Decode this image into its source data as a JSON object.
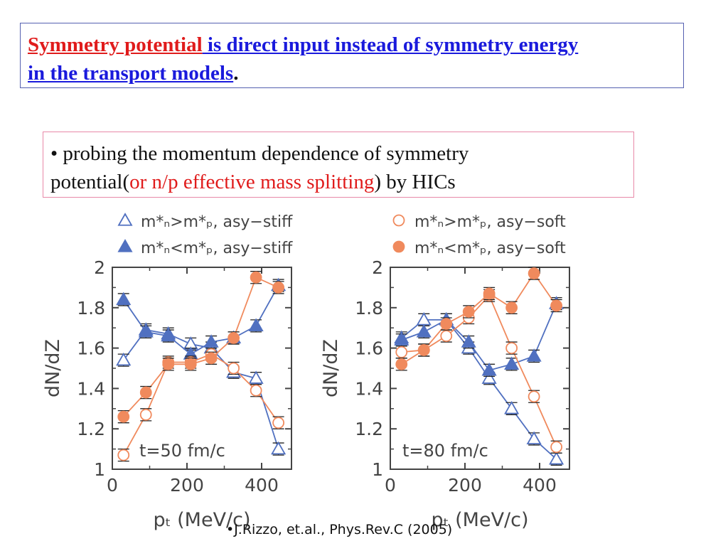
{
  "header": {
    "part1": "Symmetry potential",
    "part2": " is direct input instead of symmetry energy",
    "part3": "in the transport models",
    "part4": "."
  },
  "bullet": {
    "prefix": "•  probing the  momentum dependence of symmetry",
    "line2_a": "potential(",
    "line2_red": "or n/p effective mass splitting",
    "line2_b": ") by HICs"
  },
  "citation": "•J.Rizzo, et.al., Phys.Rev.C (2005)",
  "colors": {
    "blue": "#5070c0",
    "orange": "#f08a5d",
    "axis": "#444444"
  },
  "chart_data": [
    {
      "type": "line",
      "annotation": "t=50 fm/c",
      "xlabel": "pₜ (MeV/c)",
      "ylabel": "dN/dZ",
      "xlim": [
        0,
        480
      ],
      "ylim": [
        1,
        2
      ],
      "xticks": [
        "0",
        "200",
        "400"
      ],
      "yticks": [
        "1",
        "1.2",
        "1.4",
        "1.6",
        "1.8",
        "2"
      ],
      "legend_position": "top",
      "series": [
        {
          "name": "m*ₙ>m*ₚ, asy−stiff",
          "marker": "triangle-open",
          "color": "#5070c0",
          "x": [
            30,
            90,
            150,
            210,
            265,
            325,
            385,
            445
          ],
          "y": [
            1.54,
            1.69,
            1.67,
            1.62,
            1.6,
            1.48,
            1.45,
            1.1
          ]
        },
        {
          "name": "m*ₙ<m*ₚ, asy−stiff",
          "marker": "triangle-filled",
          "color": "#5070c0",
          "x": [
            30,
            90,
            150,
            210,
            265,
            325,
            385,
            445
          ],
          "y": [
            1.84,
            1.68,
            1.66,
            1.57,
            1.63,
            1.65,
            1.71,
            1.91
          ]
        },
        {
          "name": "",
          "marker": "circle-open",
          "color": "#f08a5d",
          "x": [
            30,
            90,
            150,
            210,
            265,
            325,
            385,
            445
          ],
          "y": [
            1.07,
            1.27,
            1.53,
            1.53,
            1.57,
            1.5,
            1.39,
            1.23
          ]
        },
        {
          "name": "",
          "marker": "circle-filled",
          "color": "#f08a5d",
          "x": [
            30,
            90,
            150,
            210,
            265,
            325,
            385,
            445
          ],
          "y": [
            1.26,
            1.38,
            1.52,
            1.52,
            1.55,
            1.65,
            1.95,
            1.9
          ]
        }
      ]
    },
    {
      "type": "line",
      "annotation": "t=80 fm/c",
      "xlabel": "pₜ (MeV/c)",
      "ylabel": "dN/dZ",
      "xlim": [
        0,
        480
      ],
      "ylim": [
        1,
        2
      ],
      "xticks": [
        "0",
        "200",
        "400"
      ],
      "yticks": [
        "1",
        "1.2",
        "1.4",
        "1.6",
        "1.8",
        "2"
      ],
      "legend_position": "top",
      "series": [
        {
          "name": "",
          "marker": "triangle-open",
          "color": "#5070c0",
          "x": [
            30,
            90,
            150,
            210,
            265,
            325,
            385,
            445
          ],
          "y": [
            1.65,
            1.74,
            1.74,
            1.6,
            1.45,
            1.3,
            1.15,
            1.05
          ]
        },
        {
          "name": "",
          "marker": "triangle-filled",
          "color": "#5070c0",
          "x": [
            30,
            90,
            150,
            210,
            265,
            325,
            385,
            445
          ],
          "y": [
            1.64,
            1.68,
            1.74,
            1.63,
            1.49,
            1.52,
            1.56,
            1.82
          ]
        },
        {
          "name": "m*ₙ>m*ₚ, asy−soft",
          "marker": "circle-open",
          "color": "#f08a5d",
          "x": [
            30,
            90,
            150,
            210,
            265,
            325,
            385,
            445
          ],
          "y": [
            1.58,
            1.59,
            1.66,
            1.75,
            1.86,
            1.6,
            1.36,
            1.11
          ]
        },
        {
          "name": "m*ₙ<m*ₚ, asy−soft",
          "marker": "circle-filled",
          "color": "#f08a5d",
          "x": [
            30,
            90,
            150,
            210,
            265,
            325,
            385,
            445
          ],
          "y": [
            1.52,
            1.59,
            1.72,
            1.78,
            1.87,
            1.8,
            1.97,
            1.81
          ]
        }
      ]
    }
  ]
}
